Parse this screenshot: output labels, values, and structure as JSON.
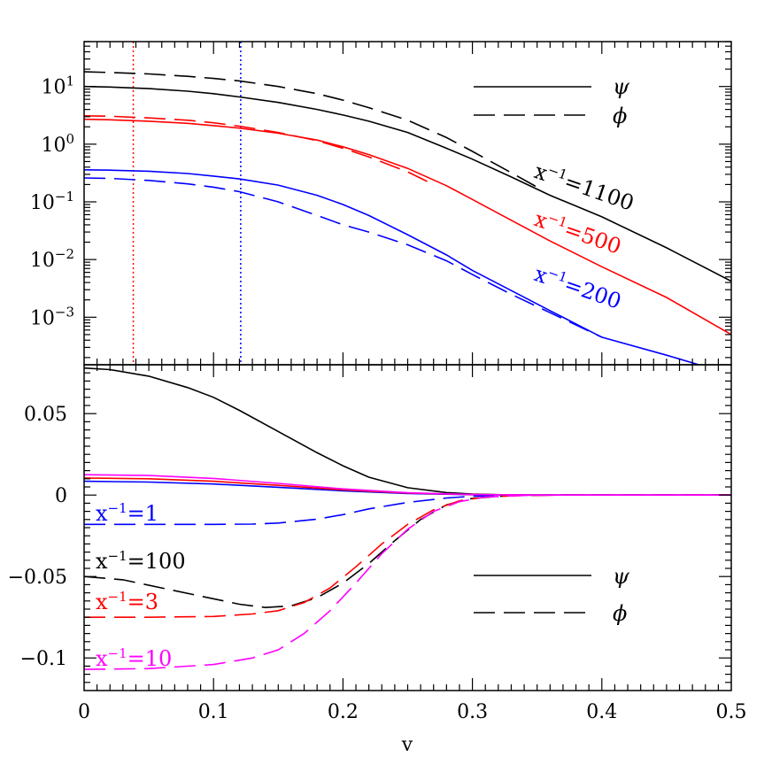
{
  "chart_data": [
    {
      "type": "line",
      "panel": "top",
      "yscale": "log",
      "xlim": [
        0,
        0.5
      ],
      "ylim": [
        0.00015,
        60
      ],
      "xlabel": "",
      "ylabel": "",
      "y_ticks": [
        {
          "value": 10,
          "base": "10",
          "exp": "1"
        },
        {
          "value": 1,
          "base": "10",
          "exp": "0"
        },
        {
          "value": 0.1,
          "base": "10",
          "exp": "−1"
        },
        {
          "value": 0.01,
          "base": "10",
          "exp": "−2"
        },
        {
          "value": 0.001,
          "base": "10",
          "exp": "−3"
        }
      ],
      "legend": {
        "position": "top-right",
        "entries": [
          {
            "symbol": "ψ",
            "style": "solid"
          },
          {
            "symbol": "ϕ",
            "style": "dashed"
          }
        ]
      },
      "vlines": [
        {
          "x": 0.038,
          "color": "#ff0000",
          "style": "dotted"
        },
        {
          "x": 0.121,
          "color": "#0000ff",
          "style": "dotted"
        }
      ],
      "series": [
        {
          "name": "psi x^-1=1100",
          "color": "#000000",
          "style": "solid",
          "x": [
            0,
            0.02,
            0.05,
            0.08,
            0.1,
            0.12,
            0.15,
            0.18,
            0.2,
            0.22,
            0.25,
            0.28,
            0.3,
            0.33,
            0.36,
            0.4,
            0.45,
            0.5
          ],
          "y": [
            10,
            9.8,
            9.2,
            8.3,
            7.5,
            6.6,
            5.3,
            4,
            3.2,
            2.5,
            1.6,
            0.85,
            0.55,
            0.27,
            0.13,
            0.055,
            0.016,
            0.0042
          ]
        },
        {
          "name": "phi x^-1=1100",
          "color": "#000000",
          "style": "dashed",
          "x": [
            0,
            0.02,
            0.05,
            0.08,
            0.1,
            0.12,
            0.15,
            0.18,
            0.2,
            0.22,
            0.25,
            0.28,
            0.3,
            0.33,
            0.35
          ],
          "y": [
            18,
            17.5,
            16.5,
            15,
            13.8,
            12.5,
            10,
            7.5,
            5.8,
            4.3,
            2.6,
            1.3,
            0.75,
            0.32,
            0.18
          ]
        },
        {
          "name": "psi x^-1=500",
          "color": "#ff0000",
          "style": "solid",
          "x": [
            0,
            0.02,
            0.05,
            0.08,
            0.1,
            0.12,
            0.15,
            0.18,
            0.2,
            0.22,
            0.25,
            0.28,
            0.3,
            0.33,
            0.36,
            0.4,
            0.45,
            0.5
          ],
          "y": [
            2.7,
            2.65,
            2.5,
            2.3,
            2.1,
            1.9,
            1.55,
            1.18,
            0.9,
            0.66,
            0.38,
            0.19,
            0.11,
            0.048,
            0.021,
            0.0075,
            0.0022,
            0.0005
          ]
        },
        {
          "name": "phi x^-1=500",
          "color": "#ff0000",
          "style": "dashed",
          "x": [
            0,
            0.02,
            0.05,
            0.08,
            0.1,
            0.12,
            0.15,
            0.18,
            0.2,
            0.22,
            0.25,
            0.27
          ],
          "y": [
            3.1,
            3.05,
            2.85,
            2.6,
            2.35,
            2.05,
            1.6,
            1.15,
            0.85,
            0.6,
            0.33,
            0.2
          ]
        },
        {
          "name": "psi x^-1=200",
          "color": "#0000ff",
          "style": "solid",
          "x": [
            0,
            0.02,
            0.05,
            0.08,
            0.1,
            0.12,
            0.15,
            0.18,
            0.2,
            0.22,
            0.25,
            0.28,
            0.3,
            0.33,
            0.36,
            0.4,
            0.45,
            0.475
          ],
          "y": [
            0.36,
            0.355,
            0.34,
            0.31,
            0.28,
            0.25,
            0.195,
            0.13,
            0.09,
            0.058,
            0.027,
            0.012,
            0.0065,
            0.0029,
            0.0013,
            0.00045,
            0.00022,
            0.00015
          ]
        },
        {
          "name": "phi x^-1=200",
          "color": "#0000ff",
          "style": "dashed",
          "x": [
            0,
            0.02,
            0.05,
            0.08,
            0.1,
            0.12,
            0.15,
            0.18,
            0.2,
            0.22,
            0.25,
            0.28,
            0.3,
            0.33,
            0.36,
            0.4
          ],
          "y": [
            0.26,
            0.255,
            0.235,
            0.205,
            0.18,
            0.15,
            0.1,
            0.058,
            0.04,
            0.03,
            0.018,
            0.0095,
            0.0055,
            0.0025,
            0.0012,
            0.00045
          ]
        }
      ],
      "annotations": [
        {
          "base": "x",
          "exp": "−1",
          "value": "=1100",
          "color": "#000000",
          "angle": 19
        },
        {
          "base": "x",
          "exp": "−1",
          "value": "=500",
          "color": "#ff0000",
          "angle": 19
        },
        {
          "base": "x",
          "exp": "−1",
          "value": "=200",
          "color": "#0000ff",
          "angle": 19
        }
      ]
    },
    {
      "type": "line",
      "panel": "bottom",
      "xlim": [
        0,
        0.5
      ],
      "ylim": [
        -0.12,
        0.08
      ],
      "xlabel": "v",
      "ylabel": "",
      "x_ticks": [
        "0",
        "0.1",
        "0.2",
        "0.3",
        "0.4",
        "0.5"
      ],
      "y_ticks": [
        "0.05",
        "0",
        "−0.05",
        "−0.1"
      ],
      "legend": {
        "position": "bottom-right",
        "entries": [
          {
            "symbol": "ψ",
            "style": "solid"
          },
          {
            "symbol": "ϕ",
            "style": "dashed"
          }
        ]
      },
      "series": [
        {
          "name": "psi x^-1=100",
          "color": "#000000",
          "style": "solid",
          "x": [
            0,
            0.02,
            0.05,
            0.08,
            0.1,
            0.12,
            0.15,
            0.18,
            0.2,
            0.22,
            0.25,
            0.28,
            0.3,
            0.33,
            0.36,
            0.4,
            0.5
          ],
          "y": [
            0.078,
            0.077,
            0.073,
            0.066,
            0.06,
            0.052,
            0.039,
            0.026,
            0.018,
            0.011,
            0.0045,
            0.0015,
            0.0006,
            0.0001,
            0,
            0,
            0
          ]
        },
        {
          "name": "phi x^-1=100",
          "color": "#000000",
          "style": "dashed",
          "x": [
            0,
            0.03,
            0.06,
            0.09,
            0.12,
            0.14,
            0.16,
            0.18,
            0.2,
            0.22,
            0.24,
            0.26,
            0.28,
            0.3,
            0.33,
            0.36,
            0.5
          ],
          "y": [
            -0.05,
            -0.052,
            -0.057,
            -0.062,
            -0.067,
            -0.069,
            -0.068,
            -0.063,
            -0.054,
            -0.042,
            -0.028,
            -0.015,
            -0.006,
            -0.002,
            -0.0002,
            0,
            0
          ]
        },
        {
          "name": "psi x^-1=1",
          "color": "#0000ff",
          "style": "solid",
          "x": [
            0,
            0.05,
            0.1,
            0.15,
            0.2,
            0.25,
            0.3,
            0.35,
            0.5
          ],
          "y": [
            0.0085,
            0.008,
            0.0068,
            0.0048,
            0.0026,
            0.001,
            0.0002,
            0,
            0
          ]
        },
        {
          "name": "phi x^-1=1",
          "color": "#0000ff",
          "style": "dashed",
          "x": [
            0,
            0.05,
            0.1,
            0.13,
            0.15,
            0.18,
            0.2,
            0.22,
            0.25,
            0.28,
            0.3,
            0.33,
            0.36,
            0.5
          ],
          "y": [
            -0.018,
            -0.018,
            -0.018,
            -0.0178,
            -0.0172,
            -0.0148,
            -0.012,
            -0.0085,
            -0.0045,
            -0.0018,
            -0.0007,
            -0.0001,
            0,
            0
          ]
        },
        {
          "name": "psi x^-1=3",
          "color": "#ff0000",
          "style": "solid",
          "x": [
            0,
            0.05,
            0.1,
            0.15,
            0.2,
            0.25,
            0.3,
            0.35,
            0.5
          ],
          "y": [
            0.0105,
            0.01,
            0.0085,
            0.006,
            0.0032,
            0.0012,
            0.0003,
            0,
            0
          ]
        },
        {
          "name": "phi x^-1=3",
          "color": "#ff0000",
          "style": "dashed",
          "x": [
            0,
            0.05,
            0.1,
            0.13,
            0.15,
            0.17,
            0.19,
            0.21,
            0.23,
            0.25,
            0.27,
            0.29,
            0.31,
            0.34,
            0.37,
            0.5
          ],
          "y": [
            -0.075,
            -0.075,
            -0.0745,
            -0.073,
            -0.071,
            -0.066,
            -0.057,
            -0.044,
            -0.03,
            -0.018,
            -0.009,
            -0.0035,
            -0.0012,
            -0.0002,
            0,
            0
          ]
        },
        {
          "name": "psi x^-1=10",
          "color": "#ff00ff",
          "style": "solid",
          "x": [
            0,
            0.05,
            0.1,
            0.15,
            0.2,
            0.25,
            0.3,
            0.35,
            0.5
          ],
          "y": [
            0.0125,
            0.012,
            0.0102,
            0.0072,
            0.0038,
            0.0014,
            0.0003,
            0,
            0
          ]
        },
        {
          "name": "phi x^-1=10",
          "color": "#ff00ff",
          "style": "dashed",
          "x": [
            0,
            0.05,
            0.1,
            0.13,
            0.15,
            0.17,
            0.19,
            0.21,
            0.23,
            0.25,
            0.27,
            0.29,
            0.31,
            0.34,
            0.37,
            0.5
          ],
          "y": [
            -0.107,
            -0.1065,
            -0.104,
            -0.1,
            -0.095,
            -0.085,
            -0.071,
            -0.054,
            -0.036,
            -0.021,
            -0.01,
            -0.004,
            -0.0012,
            -0.0002,
            0,
            0
          ]
        }
      ],
      "annotations": [
        {
          "base": "x",
          "exp": "−1",
          "value": "=1",
          "color": "#0000ff"
        },
        {
          "base": "x",
          "exp": "−1",
          "value": "=100",
          "color": "#000000"
        },
        {
          "base": "x",
          "exp": "−1",
          "value": "=3",
          "color": "#ff0000"
        },
        {
          "base": "x",
          "exp": "−1",
          "value": "=10",
          "color": "#ff00ff"
        }
      ]
    }
  ]
}
